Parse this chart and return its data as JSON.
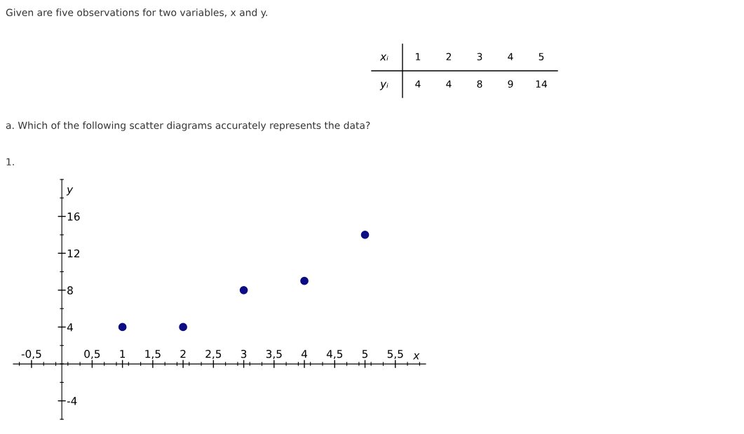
{
  "chart_data": {
    "type": "scatter",
    "title": "Given are five observations for two variables, x and y.",
    "annotations": [
      "a. Which of the following scatter diagrams accurately represents the data?",
      "1.",
      "xᵢ",
      "1",
      "2",
      "3",
      "4",
      "5",
      "yᵢ",
      "4",
      "4",
      "8",
      "9",
      "14"
    ],
    "xlabel": "x",
    "ylabel": "y",
    "x": [
      1,
      2,
      3,
      4,
      5
    ],
    "series": [
      {
        "color": "#0c0c84",
        "values": [
          4,
          4,
          8,
          9,
          14
        ]
      }
    ],
    "marker": "circle",
    "grid": false,
    "legend": false,
    "xlim": [
      -0.8,
      6
    ],
    "xticks": [
      {
        "value": -0.5,
        "label": "-0,5"
      },
      {
        "value": 0.5,
        "label": "0,5"
      },
      1,
      {
        "value": 1.5,
        "label": "1,5"
      },
      2,
      {
        "value": 2.5,
        "label": "2,5"
      },
      3,
      {
        "value": 3.5,
        "label": "3,5"
      },
      4,
      {
        "value": 4.5,
        "label": "4,5"
      },
      5,
      {
        "value": 5.5,
        "label": "5,5"
      }
    ],
    "ylim": [
      -6,
      20
    ],
    "yticks": [
      -4,
      4,
      8,
      12,
      16
    ]
  }
}
